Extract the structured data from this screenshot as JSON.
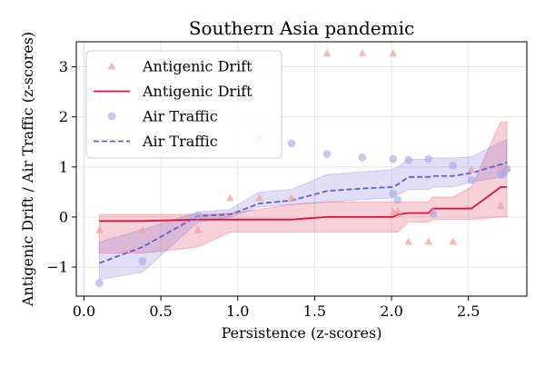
{
  "chart_data": {
    "type": "scatter",
    "title": "Southern Asia pandemic",
    "xlabel": "Persistence (z-scores)",
    "ylabel": "Antigenic Drift / Air Traffic (z-scores)",
    "xlim": [
      -0.05,
      2.88
    ],
    "ylim": [
      -1.58,
      3.5
    ],
    "xticks": [
      "0.0",
      "0.5",
      "1.0",
      "1.5",
      "2.0",
      "2.5"
    ],
    "xtick_values": [
      0.0,
      0.5,
      1.0,
      1.5,
      2.0,
      2.5
    ],
    "yticks": [
      "−1",
      "0",
      "1",
      "2",
      "3"
    ],
    "ytick_values": [
      -1,
      0,
      1,
      2,
      3
    ],
    "grid": true,
    "legend_position": "top-left",
    "legend": [
      {
        "label": "Antigenic Drift",
        "kind": "scatter",
        "marker": "triangle",
        "color": "#f4a0a0"
      },
      {
        "label": "Antigenic Drift",
        "kind": "line",
        "dash": "solid",
        "color": "#dc143c"
      },
      {
        "label": "Air Traffic",
        "kind": "scatter",
        "marker": "circle",
        "color": "#a9a9ee"
      },
      {
        "label": "Air Traffic",
        "kind": "line",
        "dash": "dashed",
        "color": "#6a5acd"
      }
    ],
    "series": [
      {
        "name": "Antigenic Drift",
        "kind": "scatter",
        "marker": "triangle",
        "color": "#f4a0a0",
        "points": [
          [
            0.1,
            -0.26
          ],
          [
            0.38,
            -0.26
          ],
          [
            0.74,
            -0.26
          ],
          [
            0.95,
            0.38
          ],
          [
            1.14,
            0.38
          ],
          [
            1.35,
            0.38
          ],
          [
            1.58,
            3.27
          ],
          [
            1.81,
            3.27
          ],
          [
            2.01,
            3.27
          ],
          [
            2.01,
            0.1
          ],
          [
            2.04,
            0.12
          ],
          [
            2.11,
            -0.49
          ],
          [
            2.24,
            -0.49
          ],
          [
            2.27,
            0.1
          ],
          [
            2.4,
            -0.49
          ],
          [
            2.52,
            0.95
          ],
          [
            2.71,
            0.22
          ],
          [
            2.72,
            0.95
          ],
          [
            2.75,
            0.97
          ]
        ]
      },
      {
        "name": "Antigenic Drift",
        "kind": "line",
        "dash": "solid",
        "color": "#dc143c",
        "x": [
          0.1,
          0.38,
          0.74,
          0.95,
          1.14,
          1.35,
          1.58,
          1.81,
          2.01,
          2.04,
          2.11,
          2.24,
          2.27,
          2.4,
          2.52,
          2.71,
          2.72,
          2.75
        ],
        "y": [
          -0.08,
          -0.08,
          -0.05,
          -0.05,
          -0.05,
          -0.05,
          0.0,
          0.0,
          0.0,
          0.05,
          0.08,
          0.08,
          0.17,
          0.17,
          0.17,
          0.6,
          0.6,
          0.6
        ],
        "band_lower": [
          -0.72,
          -0.72,
          -0.6,
          -0.3,
          -0.3,
          -0.3,
          -0.3,
          -0.3,
          -0.3,
          -0.3,
          -0.1,
          -0.1,
          -0.05,
          -0.05,
          -0.05,
          0.0,
          0.0,
          0.0
        ],
        "band_upper": [
          0.05,
          0.05,
          0.05,
          0.08,
          0.15,
          0.25,
          0.3,
          0.3,
          0.3,
          0.3,
          0.3,
          0.3,
          0.4,
          0.4,
          0.6,
          1.9,
          1.9,
          1.9
        ]
      },
      {
        "name": "Air Traffic",
        "kind": "scatter",
        "marker": "circle",
        "color": "#a9a9ee",
        "points": [
          [
            0.1,
            -1.32
          ],
          [
            0.38,
            -0.88
          ],
          [
            0.74,
            0.03
          ],
          [
            1.14,
            1.56
          ],
          [
            1.35,
            1.47
          ],
          [
            1.58,
            1.26
          ],
          [
            1.81,
            1.19
          ],
          [
            2.01,
            1.16
          ],
          [
            2.01,
            0.47
          ],
          [
            2.04,
            0.34
          ],
          [
            2.11,
            1.14
          ],
          [
            2.24,
            1.16
          ],
          [
            2.27,
            0.06
          ],
          [
            2.4,
            1.03
          ],
          [
            2.52,
            0.74
          ],
          [
            2.71,
            0.86
          ],
          [
            2.72,
            0.84
          ],
          [
            2.75,
            0.96
          ]
        ]
      },
      {
        "name": "Air Traffic",
        "kind": "line",
        "dash": "dashed",
        "color": "#6a5acd",
        "x": [
          0.1,
          0.38,
          0.74,
          0.95,
          1.14,
          1.35,
          1.58,
          1.81,
          2.01,
          2.04,
          2.11,
          2.24,
          2.27,
          2.4,
          2.52,
          2.71,
          2.72,
          2.75
        ],
        "y": [
          -0.92,
          -0.6,
          0.02,
          0.05,
          0.27,
          0.33,
          0.52,
          0.57,
          0.6,
          0.65,
          0.8,
          0.8,
          0.82,
          0.82,
          0.88,
          1.05,
          1.05,
          1.09
        ],
        "band_lower": [
          -1.25,
          -1.1,
          -0.1,
          0.0,
          0.2,
          0.25,
          0.3,
          0.35,
          0.38,
          0.45,
          0.55,
          0.55,
          0.6,
          0.6,
          0.7,
          0.8,
          0.8,
          0.85
        ],
        "band_upper": [
          -0.5,
          -0.25,
          0.1,
          0.15,
          0.5,
          0.55,
          0.85,
          0.9,
          0.95,
          1.0,
          1.15,
          1.15,
          1.18,
          1.18,
          1.2,
          1.5,
          1.5,
          1.55
        ]
      }
    ],
    "colors": {
      "drift_fill": "#dc143c",
      "traffic_fill": "#6a5acd"
    }
  }
}
